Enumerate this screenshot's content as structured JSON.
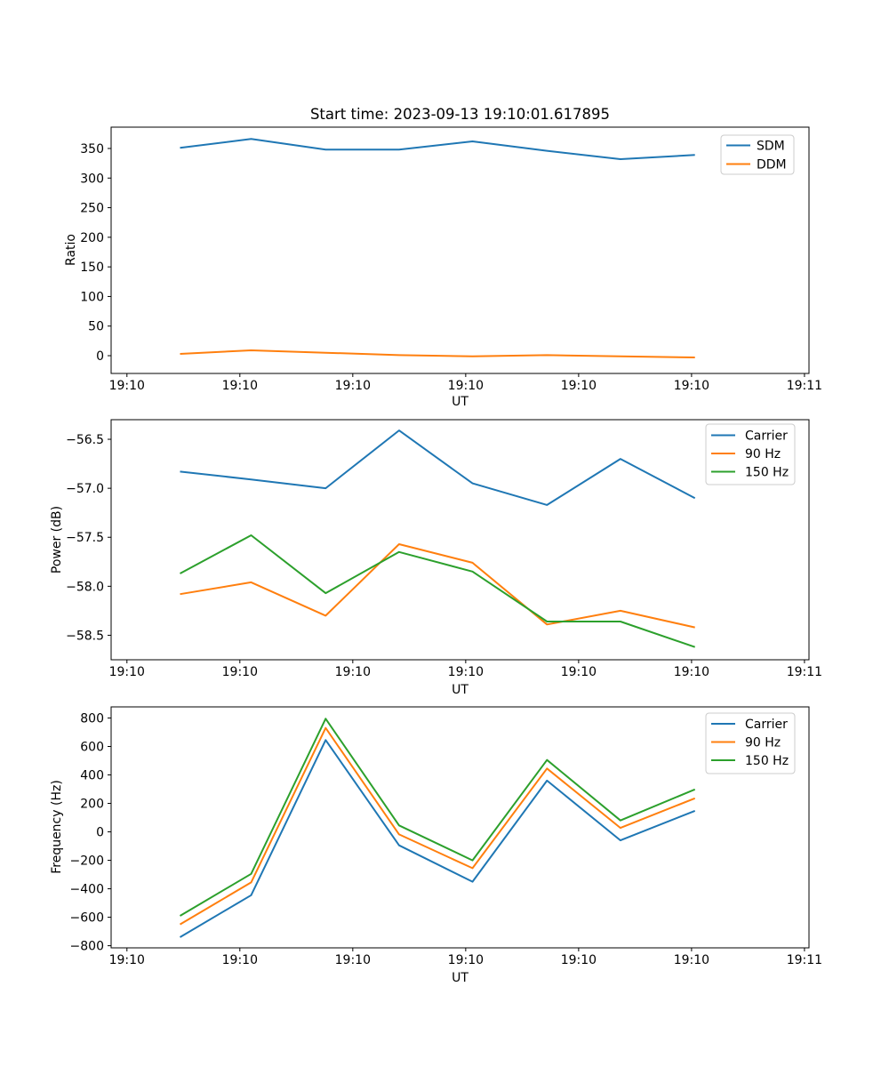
{
  "figure": {
    "title": "Start time: 2023-09-13 19:10:01.617895",
    "background": "#ffffff",
    "text_color": "#000000",
    "spine_color": "#000000",
    "legend_border_color": "#cccccc",
    "accent_colors": {
      "blue": "#1f77b4",
      "orange": "#ff7f0e",
      "green": "#2ca02c"
    }
  },
  "chart_data": [
    {
      "id": "ratio",
      "type": "line",
      "title": "Start time: 2023-09-13 19:10:01.617895",
      "xlabel": "UT",
      "ylabel": "Ratio",
      "grid": false,
      "legend_position": "upper right",
      "x_units": "seconds after 19:10:00 UT",
      "x": [
        4.7,
        11.0,
        17.6,
        24.1,
        30.6,
        37.2,
        43.7,
        50.3
      ],
      "xlim": [
        -1.4,
        60.4
      ],
      "ylim": [
        -30,
        386
      ],
      "xticks": [
        0,
        10,
        20,
        30,
        40,
        50,
        60
      ],
      "xtick_labels": [
        "19:10",
        "19:10",
        "19:10",
        "19:10",
        "19:10",
        "19:10",
        "19:11"
      ],
      "yticks": [
        0,
        50,
        100,
        150,
        200,
        250,
        300,
        350
      ],
      "ytick_labels": [
        "0",
        "50",
        "100",
        "150",
        "200",
        "250",
        "300",
        "350"
      ],
      "series": [
        {
          "name": "SDM",
          "color": "#1f77b4",
          "values": [
            351,
            366,
            348,
            348,
            362,
            346,
            332,
            339
          ]
        },
        {
          "name": "DDM",
          "color": "#ff7f0e",
          "values": [
            3,
            9,
            5,
            1,
            -1,
            1,
            -1,
            -3
          ]
        }
      ]
    },
    {
      "id": "power",
      "type": "line",
      "title": "",
      "xlabel": "UT",
      "ylabel": "Power (dB)",
      "grid": false,
      "legend_position": "upper right",
      "x_units": "seconds after 19:10:00 UT",
      "x": [
        4.7,
        11.0,
        17.6,
        24.1,
        30.6,
        37.2,
        43.7,
        50.3
      ],
      "xlim": [
        -1.4,
        60.4
      ],
      "ylim": [
        -58.75,
        -56.3
      ],
      "xticks": [
        0,
        10,
        20,
        30,
        40,
        50,
        60
      ],
      "xtick_labels": [
        "19:10",
        "19:10",
        "19:10",
        "19:10",
        "19:10",
        "19:10",
        "19:11"
      ],
      "yticks": [
        -56.5,
        -57.0,
        -57.5,
        -58.0,
        -58.5
      ],
      "ytick_labels": [
        "−56.5",
        "−57.0",
        "−57.5",
        "−58.0",
        "−58.5"
      ],
      "series": [
        {
          "name": "Carrier",
          "color": "#1f77b4",
          "values": [
            -56.83,
            -56.91,
            -57.0,
            -56.41,
            -56.95,
            -57.17,
            -56.7,
            -57.1
          ]
        },
        {
          "name": "90 Hz",
          "color": "#ff7f0e",
          "values": [
            -58.08,
            -57.96,
            -58.3,
            -57.57,
            -57.76,
            -58.39,
            -58.25,
            -58.42
          ]
        },
        {
          "name": "150 Hz",
          "color": "#2ca02c",
          "values": [
            -57.87,
            -57.48,
            -58.07,
            -57.65,
            -57.85,
            -58.36,
            -58.36,
            -58.62
          ]
        }
      ]
    },
    {
      "id": "frequency",
      "type": "line",
      "title": "",
      "xlabel": "UT",
      "ylabel": "Frequency (Hz)",
      "grid": false,
      "legend_position": "upper right",
      "x_units": "seconds after 19:10:00 UT",
      "x": [
        4.7,
        11.0,
        17.6,
        24.1,
        30.6,
        37.2,
        43.7,
        50.3
      ],
      "xlim": [
        -1.4,
        60.4
      ],
      "ylim": [
        -815,
        878
      ],
      "xticks": [
        0,
        10,
        20,
        30,
        40,
        50,
        60
      ],
      "xtick_labels": [
        "19:10",
        "19:10",
        "19:10",
        "19:10",
        "19:10",
        "19:10",
        "19:11"
      ],
      "yticks": [
        -800,
        -600,
        -400,
        -200,
        0,
        200,
        400,
        600,
        800
      ],
      "ytick_labels": [
        "−800",
        "−600",
        "−400",
        "−200",
        "0",
        "200",
        "400",
        "600",
        "800"
      ],
      "series": [
        {
          "name": "Carrier",
          "color": "#1f77b4",
          "values": [
            -740,
            -445,
            645,
            -95,
            -350,
            360,
            -60,
            148
          ]
        },
        {
          "name": "90 Hz",
          "color": "#ff7f0e",
          "values": [
            -650,
            -355,
            730,
            -18,
            -255,
            445,
            28,
            236
          ]
        },
        {
          "name": "150 Hz",
          "color": "#2ca02c",
          "values": [
            -590,
            -295,
            795,
            45,
            -200,
            505,
            80,
            298
          ]
        }
      ]
    }
  ]
}
